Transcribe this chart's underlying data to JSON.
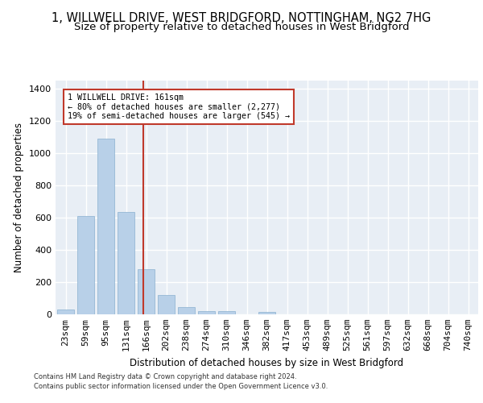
{
  "title_line1": "1, WILLWELL DRIVE, WEST BRIDGFORD, NOTTINGHAM, NG2 7HG",
  "title_line2": "Size of property relative to detached houses in West Bridgford",
  "xlabel": "Distribution of detached houses by size in West Bridgford",
  "ylabel": "Number of detached properties",
  "footnote1": "Contains HM Land Registry data © Crown copyright and database right 2024.",
  "footnote2": "Contains public sector information licensed under the Open Government Licence v3.0.",
  "bar_labels": [
    "23sqm",
    "59sqm",
    "95sqm",
    "131sqm",
    "166sqm",
    "202sqm",
    "238sqm",
    "274sqm",
    "310sqm",
    "346sqm",
    "382sqm",
    "417sqm",
    "453sqm",
    "489sqm",
    "525sqm",
    "561sqm",
    "597sqm",
    "632sqm",
    "668sqm",
    "704sqm",
    "740sqm"
  ],
  "bar_values": [
    30,
    610,
    1090,
    635,
    280,
    120,
    45,
    22,
    20,
    0,
    15,
    0,
    0,
    0,
    0,
    0,
    0,
    0,
    0,
    0,
    0
  ],
  "bar_color": "#b8d0e8",
  "bar_edge_color": "#8ab0cf",
  "vline_color": "#c0392b",
  "annotation_text": "1 WILLWELL DRIVE: 161sqm\n← 80% of detached houses are smaller (2,277)\n19% of semi-detached houses are larger (545) →",
  "annotation_box_color": "#c0392b",
  "ylim": [
    0,
    1450
  ],
  "yticks": [
    0,
    200,
    400,
    600,
    800,
    1000,
    1200,
    1400
  ],
  "bg_color": "#e8eef5",
  "grid_color": "#ffffff",
  "title_fontsize": 10.5,
  "subtitle_fontsize": 9.5,
  "axis_label_fontsize": 8.5
}
